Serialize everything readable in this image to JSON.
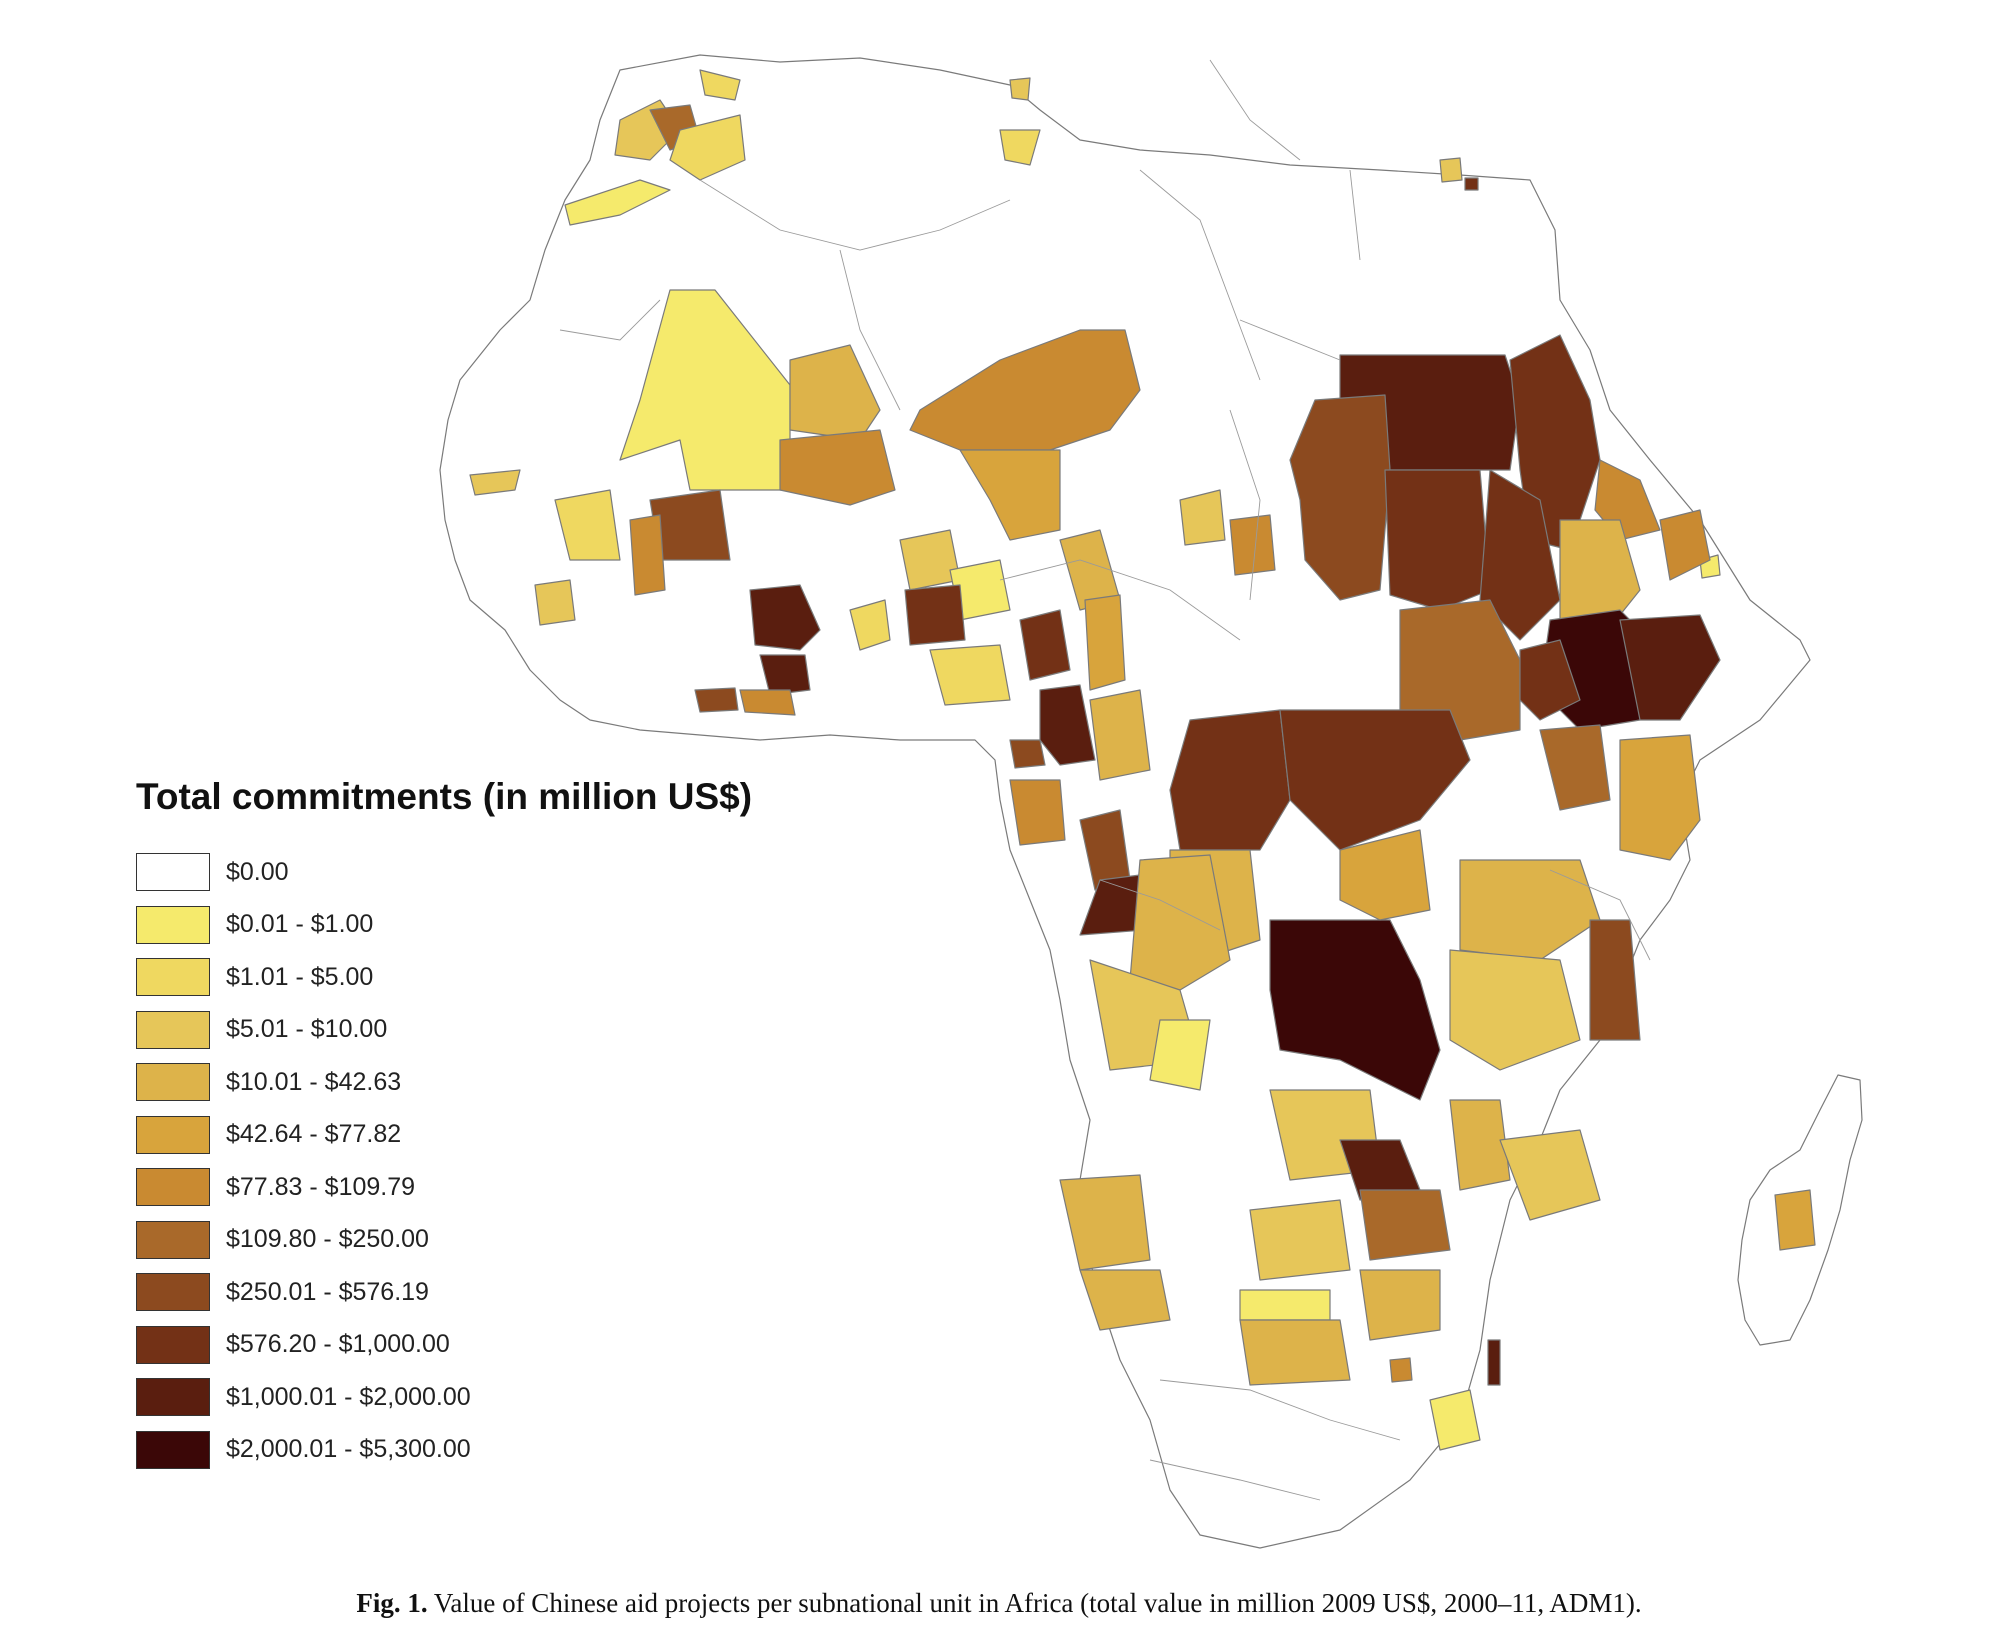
{
  "legend": {
    "title": "Total commitments (in million US$)",
    "items": [
      {
        "label": "$0.00",
        "color": "#ffffff"
      },
      {
        "label": "$0.01 - $1.00",
        "color": "#f5ea6c"
      },
      {
        "label": "$1.01 - $5.00",
        "color": "#efd860"
      },
      {
        "label": "$5.01 - $10.00",
        "color": "#e6c659"
      },
      {
        "label": "$10.01 - $42.63",
        "color": "#ddb34a"
      },
      {
        "label": "$42.64 - $77.82",
        "color": "#d8a43c"
      },
      {
        "label": "$77.83 - $109.79",
        "color": "#c98a31"
      },
      {
        "label": "$109.80 - $250.00",
        "color": "#a9692a"
      },
      {
        "label": "$250.01 - $576.19",
        "color": "#8c4a1f"
      },
      {
        "label": "$576.20 - $1,000.00",
        "color": "#733116"
      },
      {
        "label": "$1,000.01 - $2,000.00",
        "color": "#5a1e0f"
      },
      {
        "label": "$2,000.01 - $5,300.00",
        "color": "#3b0707"
      }
    ]
  },
  "caption": {
    "fig_label": "Fig. 1.",
    "text": " Value of Chinese aid projects per subnational unit in Africa (total value in million 2009 US$, 2000–11, ADM1)."
  },
  "map": {
    "subject": "Africa, ADM1 subnational units",
    "regions": [
      {
        "name": "mali-north",
        "class": 1
      },
      {
        "name": "mali-west",
        "class": 2
      },
      {
        "name": "mali-south",
        "class": 4
      },
      {
        "name": "niger-north",
        "class": 6
      },
      {
        "name": "niger-south",
        "class": 5
      },
      {
        "name": "chad-east",
        "class": 6
      },
      {
        "name": "sudan-north",
        "class": 10
      },
      {
        "name": "sudan-darfur",
        "class": 8
      },
      {
        "name": "sudan-east",
        "class": 9
      },
      {
        "name": "sudan-kordofan",
        "class": 9
      },
      {
        "name": "ethiopia-central",
        "class": 11
      },
      {
        "name": "ethiopia-west",
        "class": 8
      },
      {
        "name": "drc-north",
        "class": 9
      },
      {
        "name": "drc-katanga",
        "class": 11
      },
      {
        "name": "ghana-cote-divoire-border",
        "class": 11
      },
      {
        "name": "nigeria-east",
        "class": 9
      },
      {
        "name": "cameroon",
        "class": 9
      },
      {
        "name": "angola-north",
        "class": 4
      },
      {
        "name": "zambia-copperbelt",
        "class": 9
      },
      {
        "name": "zambia-south",
        "class": 4
      },
      {
        "name": "namibia-south",
        "class": 4
      },
      {
        "name": "botswana-west",
        "class": 2
      },
      {
        "name": "tanzania",
        "class": 4
      },
      {
        "name": "kenya",
        "class": 5
      },
      {
        "name": "madagascar-central",
        "class": 5
      },
      {
        "name": "south-africa-east",
        "class": 2
      },
      {
        "name": "mozambique-south",
        "class": 10
      }
    ]
  }
}
